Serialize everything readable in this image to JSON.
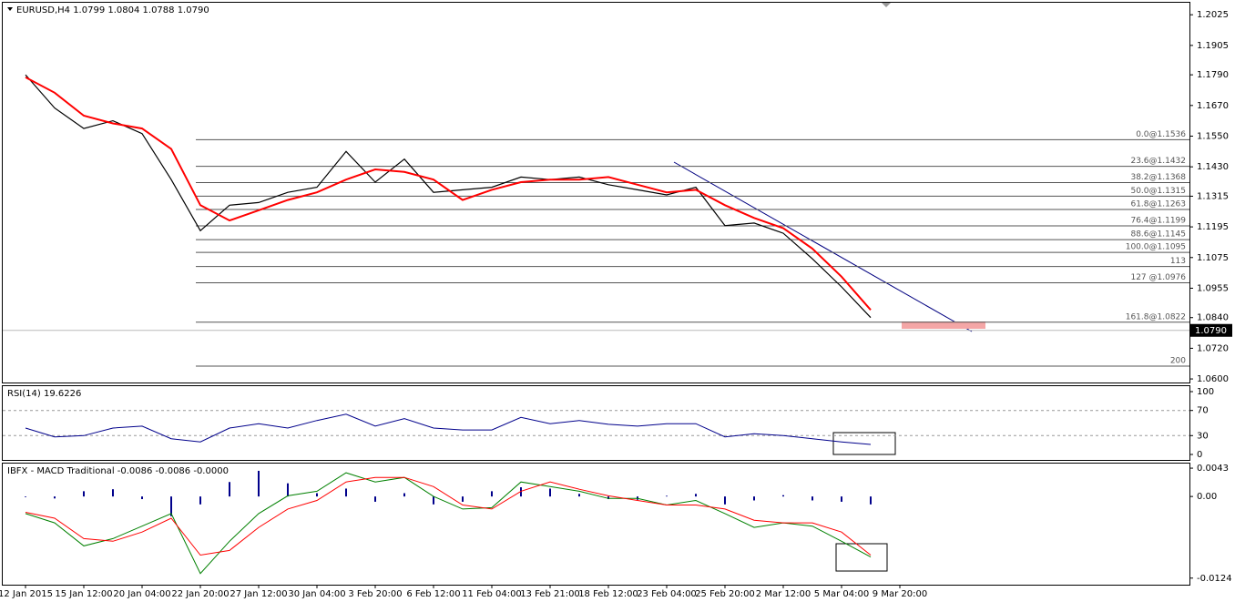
{
  "chart_data": [
    {
      "type": "line",
      "title": "EURUSD,H4  1.0799 1.0804 1.0788 1.0790",
      "categories": [
        "12 Jan 2015",
        null,
        "15 Jan 12:00",
        null,
        "20 Jan 04:00",
        null,
        "22 Jan 20:00",
        null,
        "27 Jan 12:00",
        null,
        "30 Jan 04:00",
        null,
        "3 Feb 20:00",
        null,
        "6 Feb 12:00",
        null,
        "11 Feb 04:00",
        null,
        "13 Feb 21:00",
        null,
        "18 Feb 12:00",
        null,
        "23 Feb 04:00",
        null,
        "25 Feb 20:00",
        null,
        "2 Mar 12:00",
        null,
        "5 Mar 04:00",
        null,
        "9 Mar 20:00"
      ],
      "series": [
        {
          "color": "#000000",
          "values": [
            1.179,
            1.166,
            1.158,
            1.161,
            1.156,
            1.138,
            1.118,
            1.128,
            1.129,
            1.133,
            1.135,
            1.149,
            1.137,
            1.146,
            1.133,
            1.134,
            1.135,
            1.139,
            1.138,
            1.139,
            1.136,
            1.134,
            1.132,
            1.135,
            1.12,
            1.121,
            1.117,
            1.107,
            1.096,
            1.084,
            null
          ]
        },
        {
          "color": "#ff0000",
          "values": [
            1.178,
            1.172,
            1.163,
            1.16,
            1.158,
            1.15,
            1.128,
            1.122,
            1.126,
            1.13,
            1.133,
            1.138,
            1.142,
            1.141,
            1.138,
            1.13,
            1.134,
            1.137,
            1.138,
            1.138,
            1.139,
            1.136,
            1.133,
            1.134,
            1.128,
            1.123,
            1.119,
            1.111,
            1.1,
            1.087,
            null
          ]
        }
      ],
      "ylim": [
        1.0586,
        1.2072
      ],
      "yticks": [
        1.2025,
        1.1905,
        {
          "value": 1.179,
          "label": "1.1790"
        },
        {
          "value": 1.167,
          "label": "1.1670"
        },
        {
          "value": 1.155,
          "label": "1.1550"
        },
        {
          "value": 1.143,
          "label": "1.1430"
        },
        1.1315,
        1.1195,
        1.1075,
        1.0955,
        {
          "value": 1.084,
          "label": "1.0840"
        },
        {
          "value": 1.072,
          "label": "1.0720"
        },
        {
          "value": 1.06,
          "label": "1.0600"
        }
      ],
      "last_price": {
        "value": 1.079,
        "label": "1.0790"
      },
      "fib_levels": [
        {
          "label": "0.0@1.1536",
          "price": 1.1536
        },
        {
          "label": "23.6@1.1432",
          "price": 1.1432
        },
        {
          "label": "38.2@1.1368",
          "price": 1.1368
        },
        {
          "label": "50.0@1.1315",
          "price": 1.1315
        },
        {
          "label": "61.8@1.1263",
          "price": 1.1263
        },
        {
          "label": "76.4@1.1199",
          "price": 1.1199
        },
        {
          "label": "88.6@1.1145",
          "price": 1.1145
        },
        {
          "label": "100.0@1.1095",
          "price": 1.1095
        },
        {
          "label": "113",
          "price": 1.104
        },
        {
          "label": "127 @1.0976",
          "price": 1.0976
        },
        {
          "label": "161.8@1.0822",
          "price": 1.0822
        },
        {
          "label": "200",
          "price": 1.065
        }
      ]
    },
    {
      "type": "line",
      "title": "RSI(14) 19.6226",
      "series": [
        {
          "color": "#00008b",
          "values": [
            42,
            28,
            30,
            42,
            45,
            25,
            20,
            42,
            49,
            42,
            54,
            64,
            45,
            57,
            42,
            39,
            39,
            59,
            49,
            54,
            48,
            45,
            49,
            49,
            28,
            33,
            30,
            25,
            20,
            16,
            null
          ]
        }
      ],
      "ylim": [
        -8.7,
        108.7
      ],
      "yticks": [
        100,
        70,
        30,
        0
      ],
      "levels": [
        70,
        30
      ]
    },
    {
      "type": "macd",
      "title": "IBFX - MACD Traditional -0.0086 -0.0086 -0.0000",
      "histogram": {
        "color": "#00008b",
        "values": [
          -0.0001,
          -0.0003,
          0.0008,
          0.0011,
          -0.0004,
          -0.003,
          -0.0012,
          0.0022,
          0.0039,
          0.002,
          0.0005,
          0.0012,
          -0.0008,
          0.0005,
          -0.0012,
          -0.0008,
          0.0008,
          0.0014,
          0.0012,
          0.0004,
          -0.0004,
          -0.0005,
          0.0001,
          0.0004,
          -0.0012,
          -0.0006,
          0.0002,
          -0.0006,
          -0.0008,
          -0.0012,
          null
        ]
      },
      "series": [
        {
          "color": "#008000",
          "values": [
            -0.0026,
            -0.004,
            -0.0075,
            -0.0064,
            -0.0045,
            -0.0026,
            -0.0117,
            -0.0068,
            -0.0026,
            0.0001,
            0.0008,
            0.0036,
            0.0022,
            0.0029,
            0,
            -0.0019,
            -0.0017,
            0.0022,
            0.0015,
            0.0008,
            -0.0003,
            -0.0003,
            -0.0013,
            -0.0006,
            -0.0026,
            -0.0047,
            -0.004,
            -0.0045,
            -0.0068,
            -0.0092,
            null
          ]
        },
        {
          "color": "#ff0000",
          "values": [
            -0.0024,
            -0.0033,
            -0.0064,
            -0.0068,
            -0.0054,
            -0.0033,
            -0.0089,
            -0.0082,
            -0.0047,
            -0.0019,
            -0.0006,
            0.0022,
            0.0029,
            0.0029,
            0.0015,
            -0.0013,
            -0.0019,
            0.0008,
            0.0022,
            0.0011,
            0.0001,
            -0.0006,
            -0.0013,
            -0.0013,
            -0.0019,
            -0.0036,
            -0.004,
            -0.004,
            -0.0054,
            -0.0089,
            null
          ]
        }
      ],
      "ylim": [
        -0.0134,
        0.005
      ],
      "yticks": [
        0.0043,
        {
          "value": 0,
          "label": "0.00"
        },
        -0.0124
      ]
    }
  ]
}
